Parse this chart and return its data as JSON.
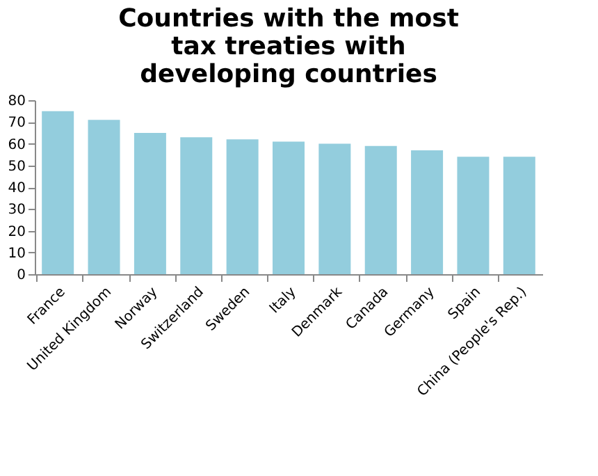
{
  "chart_data": {
    "type": "bar",
    "title": "Countries with the most tax treaties with developing countries",
    "categories": [
      "France",
      "United Kingdom",
      "Norway",
      "Switzerland",
      "Sweden",
      "Italy",
      "Denmark",
      "Canada",
      "Germany",
      "Spain",
      "China (People's Rep.)"
    ],
    "values": [
      75,
      71,
      65,
      63,
      62,
      61,
      60,
      59,
      57,
      54,
      54
    ],
    "color": "#93cddd",
    "ylim": [
      0,
      80
    ],
    "yticks": [
      0,
      10,
      20,
      30,
      40,
      50,
      60,
      70,
      80
    ],
    "grid": false
  }
}
